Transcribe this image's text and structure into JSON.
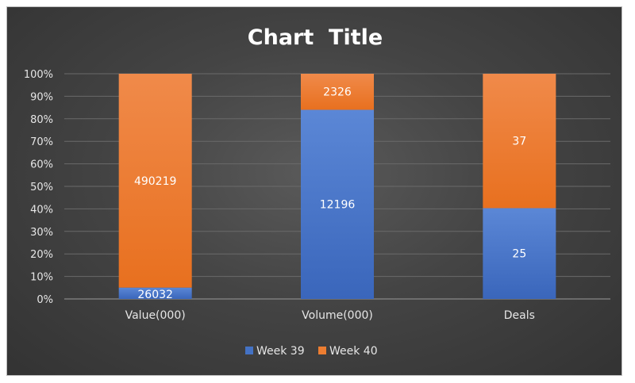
{
  "chart_data": {
    "type": "bar",
    "stacked": "100%",
    "title": "Chart  Title",
    "categories": [
      "Value(000)",
      "Volume(000)",
      "Deals"
    ],
    "series": [
      {
        "name": "Week 39",
        "values": [
          26032,
          12196,
          25
        ],
        "color": "#4472c4"
      },
      {
        "name": "Week 40",
        "values": [
          490219,
          2326,
          37
        ],
        "color": "#ed7d31"
      }
    ],
    "y_ticks": [
      "0%",
      "10%",
      "20%",
      "30%",
      "40%",
      "50%",
      "60%",
      "70%",
      "80%",
      "90%",
      "100%"
    ],
    "ylim": [
      0,
      100
    ],
    "grid": true,
    "legend_position": "bottom"
  }
}
